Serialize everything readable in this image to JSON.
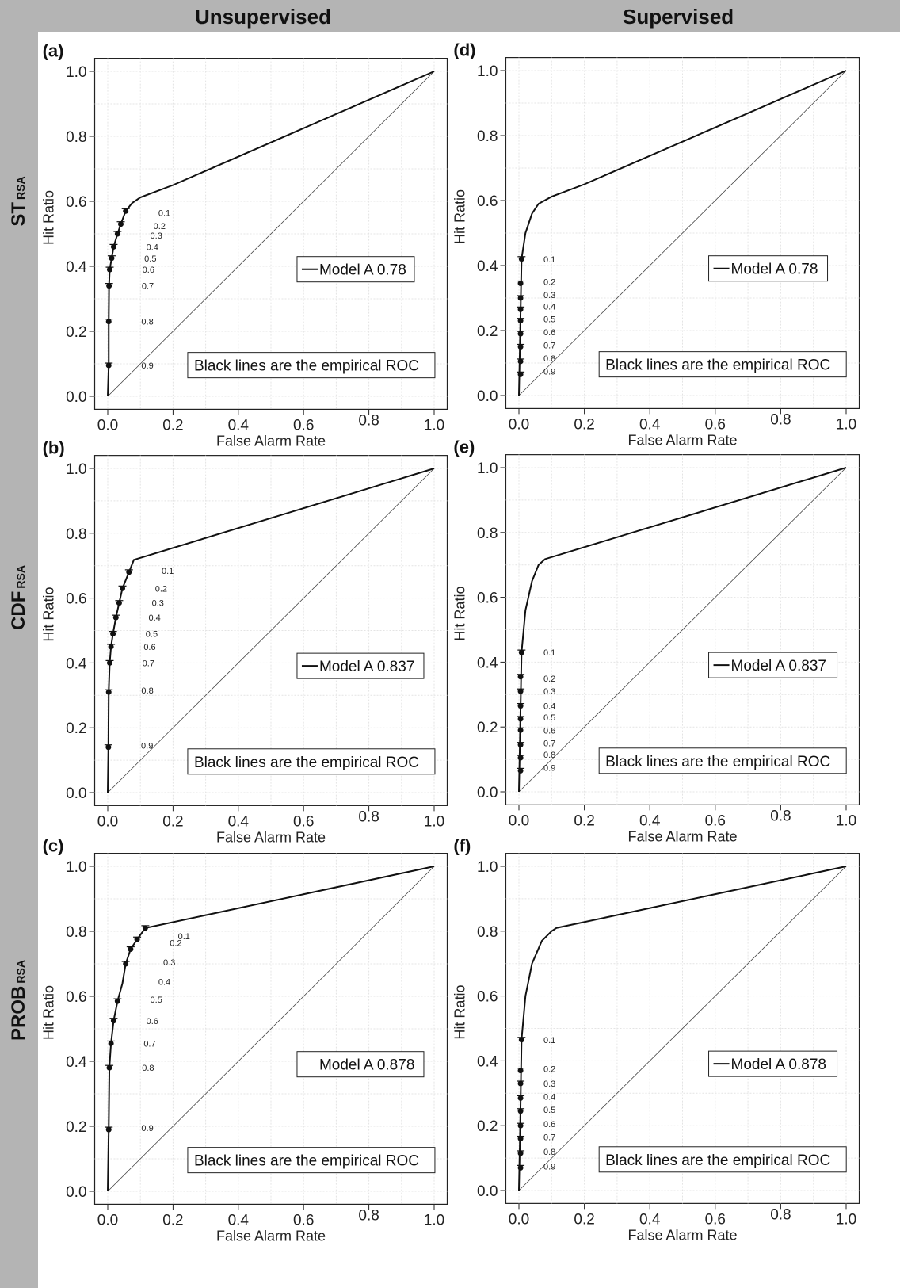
{
  "column_titles": [
    "Unsupervised",
    "Supervised"
  ],
  "row_titles": [
    {
      "main": "ST",
      "sub": "RSA"
    },
    {
      "main": "CDF",
      "sub": "RSA"
    },
    {
      "main": "PROB",
      "sub": "RSA"
    }
  ],
  "chart_data": [
    {
      "panel": "(a)",
      "type": "line",
      "xlabel": "False Alarm Rate",
      "ylabel": "Hit Ratio",
      "xlim": [
        0,
        1
      ],
      "ylim": [
        0,
        1
      ],
      "xticks": [
        "0.0",
        "0.2",
        "0.4",
        "0.6",
        "0.8",
        "1.0"
      ],
      "yticks": [
        "0.0",
        "0.2",
        "0.4",
        "0.6",
        "0.8",
        "1.0"
      ],
      "legend": "Model A 0.78",
      "legend_line": true,
      "note": "Black lines are the empirical ROC",
      "curve": [
        [
          0,
          0
        ],
        [
          0.003,
          0.095
        ],
        [
          0.003,
          0.23
        ],
        [
          0.004,
          0.34
        ],
        [
          0.006,
          0.39
        ],
        [
          0.012,
          0.425
        ],
        [
          0.018,
          0.46
        ],
        [
          0.03,
          0.5
        ],
        [
          0.04,
          0.53
        ],
        [
          0.055,
          0.57
        ],
        [
          0.075,
          0.595
        ],
        [
          0.1,
          0.612
        ],
        [
          0.2,
          0.65
        ],
        [
          1,
          1
        ]
      ],
      "thresholds": [
        "0.1",
        "0.2",
        "0.3",
        "0.4",
        "0.5",
        "0.6",
        "0.7",
        "0.8",
        "0.9"
      ],
      "points": [
        [
          0.055,
          0.57
        ],
        [
          0.04,
          0.53
        ],
        [
          0.03,
          0.5
        ],
        [
          0.018,
          0.46
        ],
        [
          0.012,
          0.425
        ],
        [
          0.006,
          0.39
        ],
        [
          0.004,
          0.34
        ],
        [
          0.003,
          0.23
        ],
        [
          0.003,
          0.095
        ]
      ],
      "label_y": [
        0.565,
        0.525,
        0.495,
        0.46,
        0.425,
        0.39,
        0.34,
        0.23,
        0.095
      ]
    },
    {
      "panel": "(b)",
      "type": "line",
      "xlabel": "False Alarm Rate",
      "ylabel": "Hit Ratio",
      "xlim": [
        0,
        1
      ],
      "ylim": [
        0,
        1
      ],
      "xticks": [
        "0.0",
        "0.2",
        "0.4",
        "0.6",
        "0.8",
        "1.0"
      ],
      "yticks": [
        "0.0",
        "0.2",
        "0.4",
        "0.6",
        "0.8",
        "1.0"
      ],
      "legend": "Model A 0.837",
      "legend_line": true,
      "note": "Black lines are the empirical ROC",
      "curve": [
        [
          0,
          0
        ],
        [
          0.002,
          0.14
        ],
        [
          0.003,
          0.31
        ],
        [
          0.006,
          0.4
        ],
        [
          0.01,
          0.45
        ],
        [
          0.016,
          0.49
        ],
        [
          0.025,
          0.54
        ],
        [
          0.035,
          0.585
        ],
        [
          0.045,
          0.63
        ],
        [
          0.065,
          0.68
        ],
        [
          0.08,
          0.718
        ],
        [
          1,
          1
        ]
      ],
      "thresholds": [
        "0.1",
        "0.2",
        "0.3",
        "0.4",
        "0.5",
        "0.6",
        "0.7",
        "0.8",
        "0.9"
      ],
      "points": [
        [
          0.065,
          0.68
        ],
        [
          0.045,
          0.63
        ],
        [
          0.035,
          0.585
        ],
        [
          0.025,
          0.54
        ],
        [
          0.016,
          0.49
        ],
        [
          0.01,
          0.45
        ],
        [
          0.006,
          0.4
        ],
        [
          0.003,
          0.31
        ],
        [
          0.002,
          0.14
        ]
      ],
      "label_y": [
        0.685,
        0.63,
        0.585,
        0.54,
        0.49,
        0.45,
        0.4,
        0.315,
        0.145
      ]
    },
    {
      "panel": "(c)",
      "type": "line",
      "xlabel": "False Alarm Rate",
      "ylabel": "Hit Ratio",
      "xlim": [
        0,
        1
      ],
      "ylim": [
        0,
        1
      ],
      "xticks": [
        "0.0",
        "0.2",
        "0.4",
        "0.6",
        "0.8",
        "1.0"
      ],
      "yticks": [
        "0.0",
        "0.2",
        "0.4",
        "0.6",
        "0.8",
        "1.0"
      ],
      "legend": "Model A 0.878",
      "legend_line": false,
      "note": "Black lines are the empirical ROC",
      "curve": [
        [
          0,
          0
        ],
        [
          0.003,
          0.19
        ],
        [
          0.005,
          0.38
        ],
        [
          0.01,
          0.455
        ],
        [
          0.018,
          0.525
        ],
        [
          0.03,
          0.585
        ],
        [
          0.045,
          0.64
        ],
        [
          0.055,
          0.7
        ],
        [
          0.07,
          0.745
        ],
        [
          0.09,
          0.775
        ],
        [
          0.115,
          0.81
        ],
        [
          1,
          1
        ]
      ],
      "thresholds": [
        "0.1",
        "0.2",
        "0.3",
        "0.4",
        "0.5",
        "0.6",
        "0.7",
        "0.8",
        "0.9"
      ],
      "points": [
        [
          0.115,
          0.81
        ],
        [
          0.09,
          0.775
        ],
        [
          0.07,
          0.745
        ],
        [
          0.055,
          0.7
        ],
        [
          0.03,
          0.585
        ],
        [
          0.018,
          0.525
        ],
        [
          0.01,
          0.455
        ],
        [
          0.005,
          0.38
        ],
        [
          0.003,
          0.19
        ]
      ],
      "label_y": [
        0.785,
        0.765,
        0.705,
        0.645,
        0.59,
        0.525,
        0.455,
        0.38,
        0.195
      ]
    },
    {
      "panel": "(d)",
      "type": "line",
      "xlabel": "False Alarm Rate",
      "ylabel": "Hit Ratio",
      "xlim": [
        0,
        1
      ],
      "ylim": [
        0,
        1
      ],
      "xticks": [
        "0.0",
        "0.2",
        "0.4",
        "0.6",
        "0.8",
        "1.0"
      ],
      "yticks": [
        "0.0",
        "0.2",
        "0.4",
        "0.6",
        "0.8",
        "1.0"
      ],
      "legend": "Model A 0.78",
      "legend_line": true,
      "note": "Black lines are the empirical ROC",
      "curve": [
        [
          0,
          0
        ],
        [
          0.004,
          0.2
        ],
        [
          0.008,
          0.42
        ],
        [
          0.02,
          0.5
        ],
        [
          0.04,
          0.56
        ],
        [
          0.06,
          0.59
        ],
        [
          0.1,
          0.612
        ],
        [
          0.2,
          0.65
        ],
        [
          1,
          1
        ]
      ],
      "thresholds": [
        "0.1",
        "0.2",
        "0.3",
        "0.4",
        "0.5",
        "0.6",
        "0.7",
        "0.8",
        "0.9"
      ],
      "points": [
        [
          0.008,
          0.42
        ],
        [
          0.005,
          0.345
        ],
        [
          0.005,
          0.3
        ],
        [
          0.005,
          0.265
        ],
        [
          0.005,
          0.23
        ],
        [
          0.005,
          0.19
        ],
        [
          0.005,
          0.15
        ],
        [
          0.005,
          0.105
        ],
        [
          0.005,
          0.065
        ]
      ],
      "label_y": [
        0.42,
        0.35,
        0.31,
        0.275,
        0.235,
        0.195,
        0.155,
        0.115,
        0.075
      ]
    },
    {
      "panel": "(e)",
      "type": "line",
      "xlabel": "False Alarm Rate",
      "ylabel": "Hit Ratio",
      "xlim": [
        0,
        1
      ],
      "ylim": [
        0,
        1
      ],
      "xticks": [
        "0.0",
        "0.2",
        "0.4",
        "0.6",
        "0.8",
        "1.0"
      ],
      "yticks": [
        "0.0",
        "0.2",
        "0.4",
        "0.6",
        "0.8",
        "1.0"
      ],
      "legend": "Model A 0.837",
      "legend_line": true,
      "note": "Black lines are the empirical ROC",
      "curve": [
        [
          0,
          0
        ],
        [
          0.004,
          0.2
        ],
        [
          0.008,
          0.43
        ],
        [
          0.02,
          0.56
        ],
        [
          0.04,
          0.65
        ],
        [
          0.06,
          0.7
        ],
        [
          0.08,
          0.718
        ],
        [
          1,
          1
        ]
      ],
      "thresholds": [
        "0.1",
        "0.2",
        "0.3",
        "0.4",
        "0.5",
        "0.6",
        "0.7",
        "0.8",
        "0.9"
      ],
      "points": [
        [
          0.008,
          0.43
        ],
        [
          0.005,
          0.355
        ],
        [
          0.005,
          0.31
        ],
        [
          0.005,
          0.265
        ],
        [
          0.005,
          0.225
        ],
        [
          0.005,
          0.19
        ],
        [
          0.005,
          0.145
        ],
        [
          0.005,
          0.105
        ],
        [
          0.005,
          0.065
        ]
      ],
      "label_y": [
        0.43,
        0.35,
        0.31,
        0.265,
        0.23,
        0.19,
        0.15,
        0.115,
        0.075
      ]
    },
    {
      "panel": "(f)",
      "type": "line",
      "xlabel": "False Alarm Rate",
      "ylabel": "Hit Ratio",
      "xlim": [
        0,
        1
      ],
      "ylim": [
        0,
        1
      ],
      "xticks": [
        "0.0",
        "0.2",
        "0.4",
        "0.6",
        "0.8",
        "1.0"
      ],
      "yticks": [
        "0.0",
        "0.2",
        "0.4",
        "0.6",
        "0.8",
        "1.0"
      ],
      "legend": "Model A 0.878",
      "legend_line": true,
      "note": "Black lines are the empirical ROC",
      "curve": [
        [
          0,
          0
        ],
        [
          0.004,
          0.2
        ],
        [
          0.008,
          0.465
        ],
        [
          0.02,
          0.6
        ],
        [
          0.04,
          0.7
        ],
        [
          0.07,
          0.77
        ],
        [
          0.1,
          0.8
        ],
        [
          0.115,
          0.81
        ],
        [
          1,
          1
        ]
      ],
      "thresholds": [
        "0.1",
        "0.2",
        "0.3",
        "0.4",
        "0.5",
        "0.6",
        "0.7",
        "0.8",
        "0.9"
      ],
      "points": [
        [
          0.008,
          0.465
        ],
        [
          0.005,
          0.37
        ],
        [
          0.005,
          0.33
        ],
        [
          0.005,
          0.285
        ],
        [
          0.005,
          0.245
        ],
        [
          0.005,
          0.2
        ],
        [
          0.005,
          0.16
        ],
        [
          0.005,
          0.115
        ],
        [
          0.005,
          0.07
        ]
      ],
      "label_y": [
        0.465,
        0.375,
        0.33,
        0.29,
        0.25,
        0.205,
        0.165,
        0.12,
        0.075
      ]
    }
  ]
}
